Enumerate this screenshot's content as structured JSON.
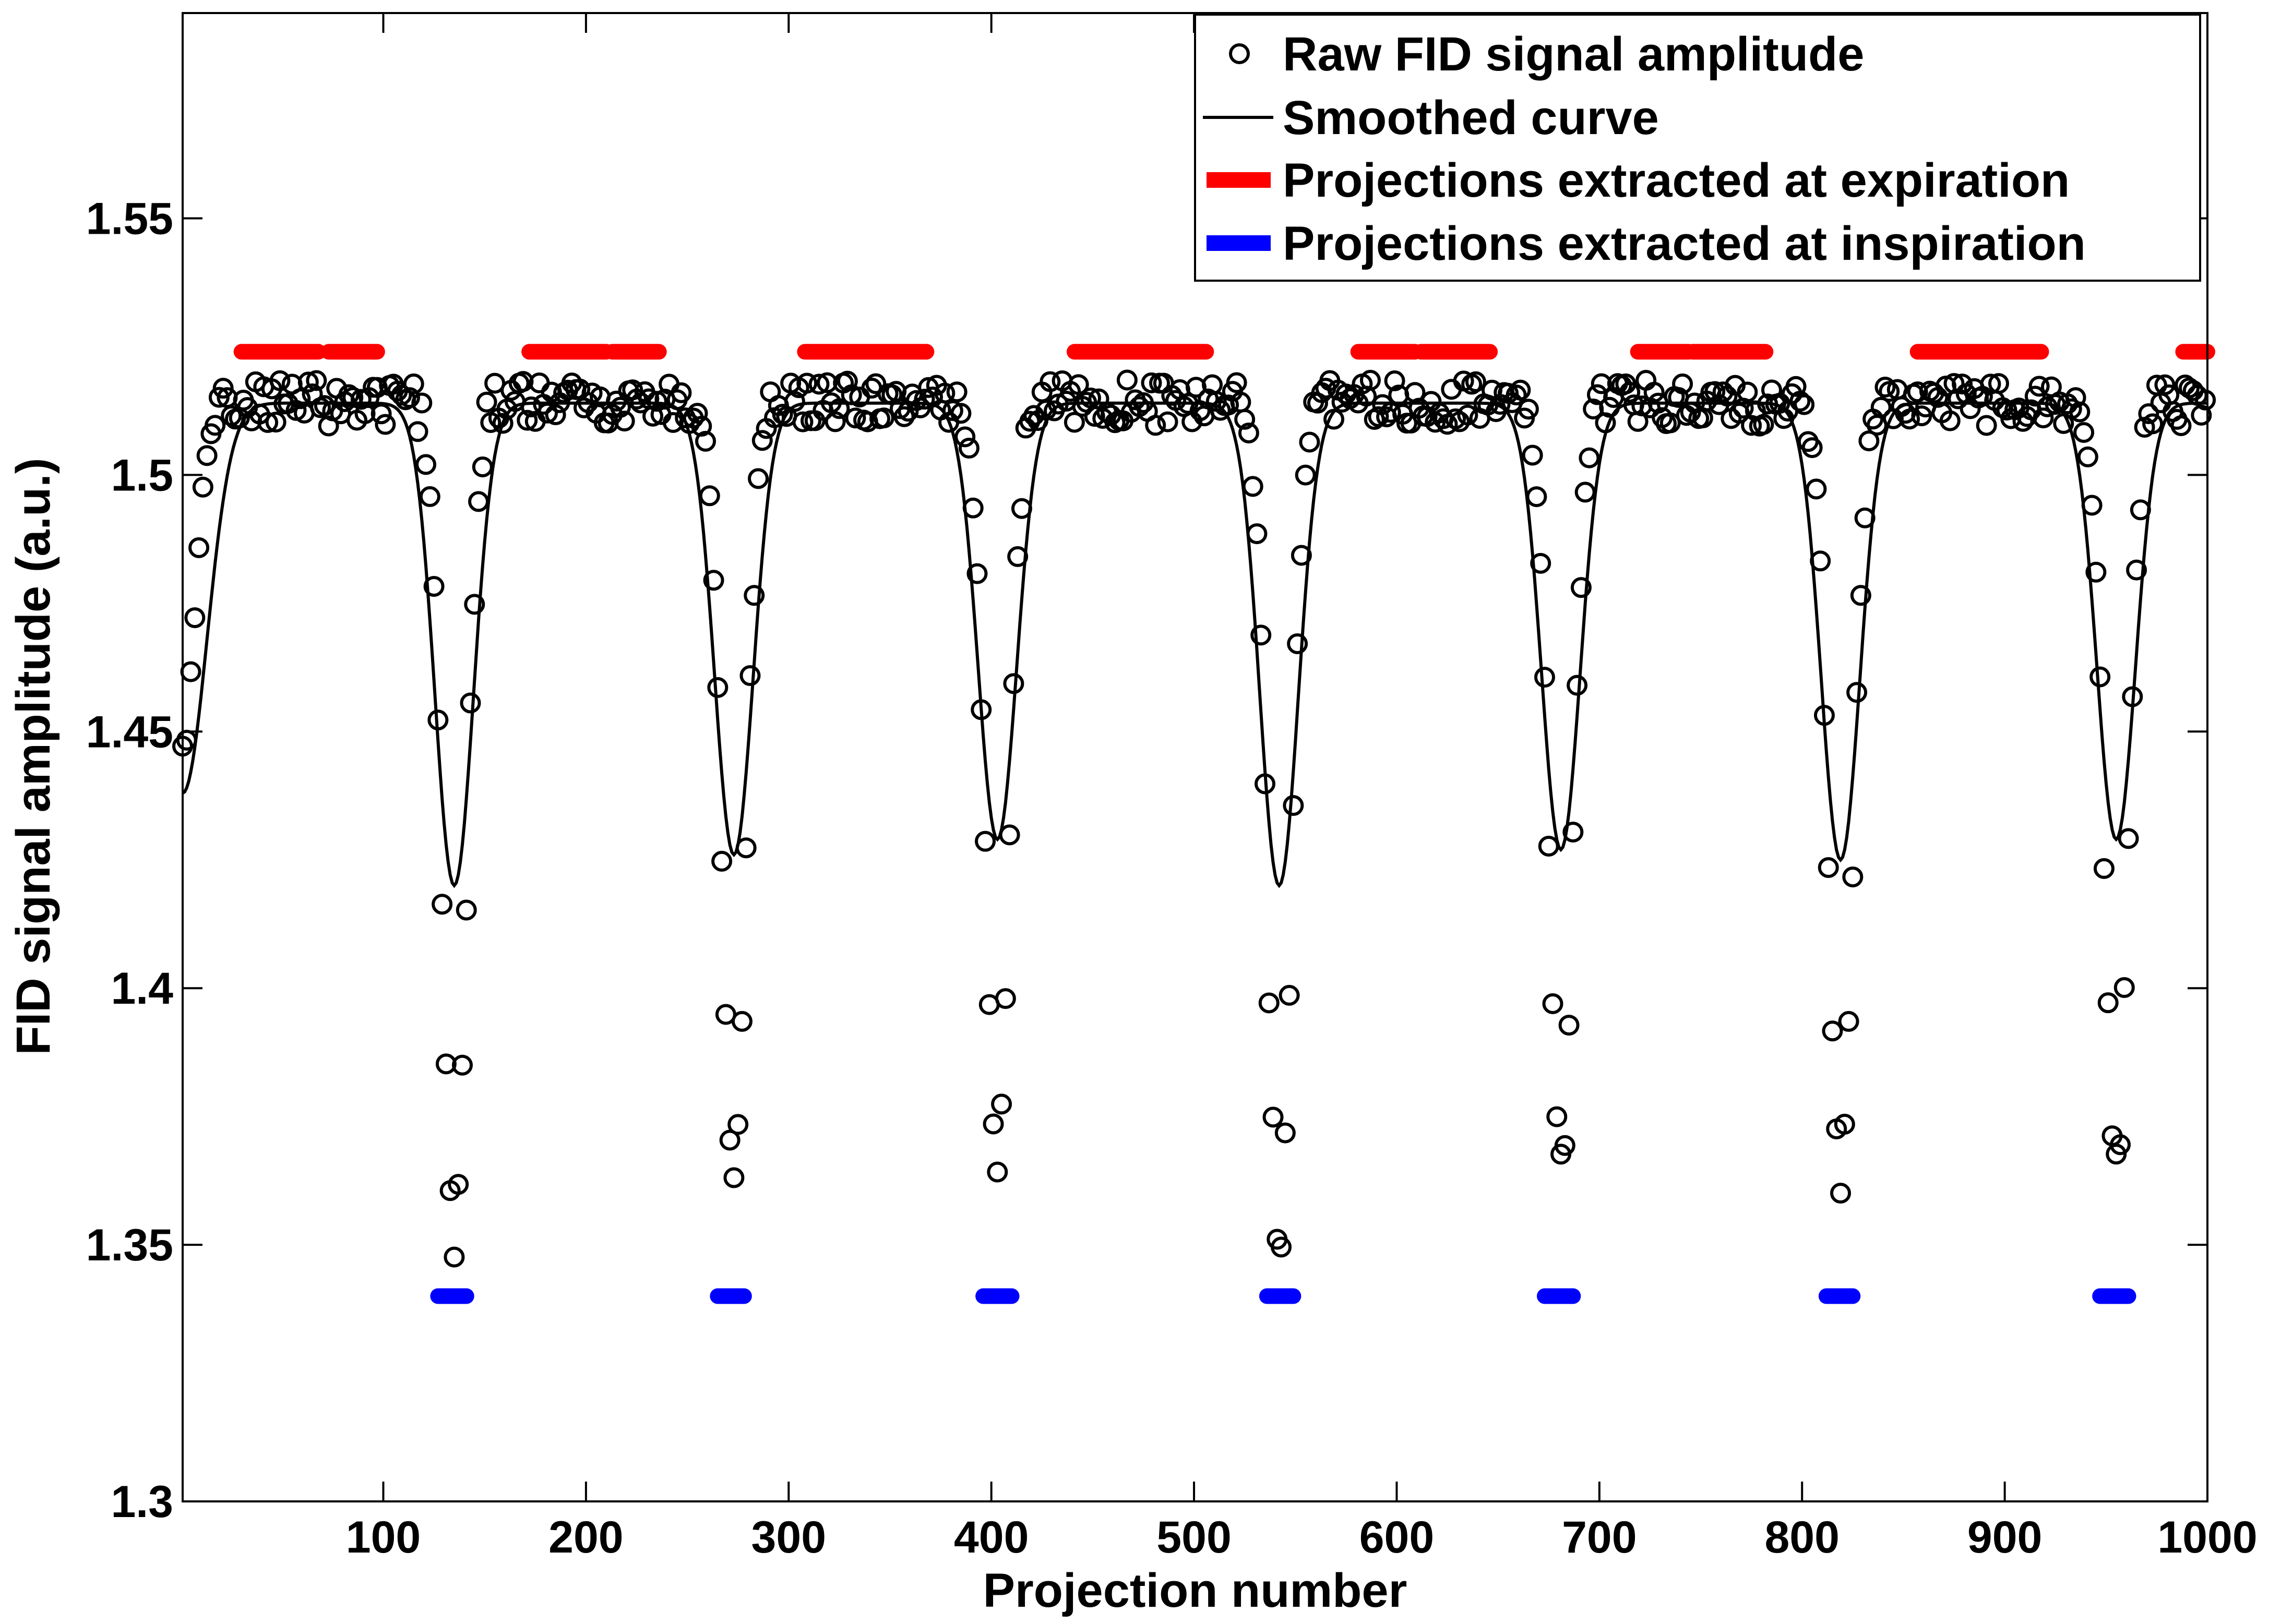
{
  "chart_data": {
    "type": "scatter",
    "title": "",
    "xlabel": "Projection number",
    "ylabel": "FID signal amplitude (a.u.)",
    "xlim": [
      1,
      1000
    ],
    "ylim": [
      1.3,
      1.59
    ],
    "xticks": [
      100,
      200,
      300,
      400,
      500,
      600,
      700,
      800,
      900,
      1000
    ],
    "xtick_labels": [
      "100",
      "200",
      "300",
      "400",
      "500",
      "600",
      "700",
      "800",
      "900",
      "1000"
    ],
    "yticks": [
      1.3,
      1.35,
      1.4,
      1.45,
      1.5,
      1.55
    ],
    "ytick_labels": [
      "1.3",
      "1.35",
      "1.4",
      "1.45",
      "1.5",
      "1.55"
    ],
    "grid": false,
    "legend_position": "top-right",
    "series_style": {
      "raw_color": "#000000",
      "smooth_color": "#000000",
      "expiration_color": "#ff0000",
      "inspiration_color": "#0000ff"
    },
    "smoothed_curve": {
      "name": "Smoothed curve",
      "baseline": 1.514,
      "start_value": 1.438,
      "dips": [
        {
          "center": 135,
          "min": 1.42
        },
        {
          "center": 273,
          "min": 1.426
        },
        {
          "center": 403,
          "min": 1.429
        },
        {
          "center": 542,
          "min": 1.42
        },
        {
          "center": 681,
          "min": 1.427
        },
        {
          "center": 819,
          "min": 1.425
        },
        {
          "center": 955,
          "min": 1.429
        }
      ]
    },
    "raw_dips": [
      {
        "center": 135,
        "min": 1.352
      },
      {
        "center": 273,
        "min": 1.365
      },
      {
        "center": 403,
        "min": 1.366
      },
      {
        "center": 542,
        "min": 1.351
      },
      {
        "center": 681,
        "min": 1.365
      },
      {
        "center": 819,
        "min": 1.361
      },
      {
        "center": 955,
        "min": 1.365
      }
    ],
    "expiration_segments": {
      "y": 1.524,
      "ranges": [
        [
          30,
          68
        ],
        [
          73,
          97
        ],
        [
          172,
          210
        ],
        [
          213,
          236
        ],
        [
          308,
          368
        ],
        [
          441,
          506
        ],
        [
          581,
          609
        ],
        [
          612,
          646
        ],
        [
          719,
          744
        ],
        [
          746,
          782
        ],
        [
          857,
          918
        ],
        [
          988,
          1000
        ]
      ]
    },
    "inspiration_segments": {
      "y": 1.34,
      "ranges": [
        [
          127,
          141
        ],
        [
          265,
          278
        ],
        [
          396,
          410
        ],
        [
          536,
          549
        ],
        [
          673,
          687
        ],
        [
          812,
          825
        ],
        [
          947,
          961
        ]
      ]
    },
    "legend": [
      {
        "label": "Raw FID signal amplitude",
        "marker": "circle"
      },
      {
        "label": "Smoothed curve",
        "marker": "line"
      },
      {
        "label": "Projections extracted at expiration",
        "marker": "thick-red-line"
      },
      {
        "label": "Projections extracted at inspiration",
        "marker": "thick-blue-line"
      }
    ]
  }
}
